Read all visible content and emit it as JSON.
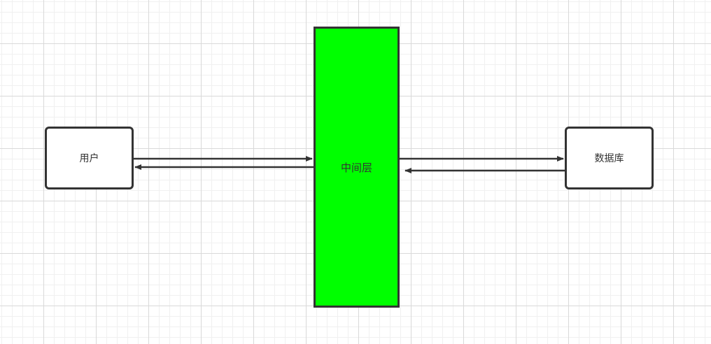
{
  "nodes": {
    "user": {
      "label": "用户"
    },
    "middle": {
      "label": "中间层",
      "fill": "#00ff00"
    },
    "database": {
      "label": "数据库"
    }
  },
  "colors": {
    "stroke": "#333333",
    "grid": "#e0e0e0"
  }
}
